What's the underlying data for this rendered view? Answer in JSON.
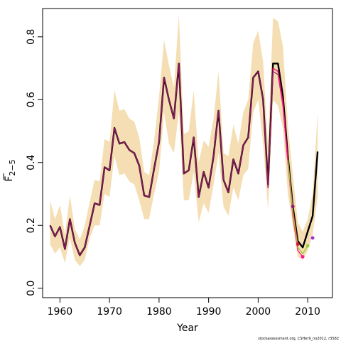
{
  "chart_data": {
    "type": "line",
    "xlabel": "Year",
    "ylabel": "F",
    "ylabel_sub": "2−5",
    "credit": "stockassessment.org, CSHer9_no2012, r3582",
    "xlim": [
      1956.5,
      2015
    ],
    "ylim": [
      -0.03,
      0.89
    ],
    "x_ticks": [
      1960,
      1970,
      1980,
      1990,
      2000,
      2010
    ],
    "x_tick_labels": [
      "1960",
      "1970",
      "1980",
      "1990",
      "2000",
      "2010"
    ],
    "y_ticks": [
      0.0,
      0.2,
      0.4,
      0.6,
      0.8
    ],
    "y_tick_labels": [
      "0.0",
      "0.2",
      "0.4",
      "0.6",
      "0.8"
    ],
    "grid": false,
    "legend": "none",
    "colors": {
      "band": "#f5deb3",
      "black_series": "#000000",
      "red_series": "#dc143c",
      "purple_series": "#8b1a6b",
      "pink_series": "#ff1493",
      "green_series": "#9acd32",
      "violet_series": "#9932cc"
    },
    "band": {
      "x": [
        1958,
        1959,
        1960,
        1961,
        1962,
        1963,
        1964,
        1965,
        1966,
        1967,
        1968,
        1969,
        1970,
        1971,
        1972,
        1973,
        1974,
        1975,
        1976,
        1977,
        1978,
        1979,
        1980,
        1981,
        1982,
        1983,
        1984,
        1985,
        1986,
        1987,
        1988,
        1989,
        1990,
        1991,
        1992,
        1993,
        1994,
        1995,
        1996,
        1997,
        1998,
        1999,
        2000,
        2001,
        2002,
        2003,
        2004,
        2005,
        2006,
        2007,
        2008,
        2009,
        2010,
        2011,
        2012
      ],
      "upper": [
        0.28,
        0.22,
        0.265,
        0.17,
        0.295,
        0.19,
        0.155,
        0.2,
        0.275,
        0.345,
        0.34,
        0.475,
        0.465,
        0.63,
        0.565,
        0.57,
        0.54,
        0.53,
        0.48,
        0.37,
        0.36,
        0.47,
        0.61,
        0.79,
        0.71,
        0.64,
        0.87,
        0.49,
        0.5,
        0.63,
        0.4,
        0.47,
        0.45,
        0.54,
        0.69,
        0.43,
        0.42,
        0.52,
        0.46,
        0.56,
        0.6,
        0.78,
        0.82,
        0.72,
        0.45,
        0.86,
        0.85,
        0.77,
        0.52,
        0.36,
        0.21,
        0.18,
        0.22,
        0.3,
        0.56
      ],
      "lower": [
        0.14,
        0.11,
        0.13,
        0.08,
        0.16,
        0.09,
        0.07,
        0.09,
        0.16,
        0.2,
        0.2,
        0.3,
        0.29,
        0.42,
        0.36,
        0.365,
        0.34,
        0.33,
        0.28,
        0.22,
        0.22,
        0.3,
        0.37,
        0.56,
        0.46,
        0.43,
        0.56,
        0.28,
        0.28,
        0.37,
        0.21,
        0.27,
        0.24,
        0.33,
        0.43,
        0.26,
        0.23,
        0.32,
        0.28,
        0.36,
        0.38,
        0.56,
        0.6,
        0.46,
        0.25,
        0.6,
        0.58,
        0.51,
        0.3,
        0.2,
        0.1,
        0.09,
        0.12,
        0.17,
        0.29
      ]
    },
    "series": [
      {
        "color": "#000000",
        "width": 2.4,
        "x": [
          1958,
          1959,
          1960,
          1961,
          1962,
          1963,
          1964,
          1965,
          1966,
          1967,
          1968,
          1969,
          1970,
          1971,
          1972,
          1973,
          1974,
          1975,
          1976,
          1977,
          1978,
          1979,
          1980,
          1981,
          1982,
          1983,
          1984,
          1985,
          1986,
          1987,
          1988,
          1989,
          1990,
          1991,
          1992,
          1993,
          1994,
          1995,
          1996,
          1997,
          1998,
          1999,
          2000,
          2001,
          2002,
          2003,
          2004,
          2005,
          2006,
          2007,
          2008,
          2009,
          2010,
          2011,
          2012
        ],
        "values": [
          0.2,
          0.165,
          0.195,
          0.125,
          0.22,
          0.145,
          0.105,
          0.13,
          0.2,
          0.27,
          0.265,
          0.385,
          0.375,
          0.51,
          0.46,
          0.465,
          0.44,
          0.43,
          0.39,
          0.295,
          0.29,
          0.38,
          0.465,
          0.67,
          0.6,
          0.54,
          0.715,
          0.365,
          0.375,
          0.48,
          0.29,
          0.37,
          0.32,
          0.42,
          0.565,
          0.345,
          0.305,
          0.41,
          0.365,
          0.455,
          0.48,
          0.67,
          0.69,
          0.6,
          0.33,
          0.715,
          0.715,
          0.61,
          0.42,
          0.26,
          0.15,
          0.13,
          0.18,
          0.23,
          0.435
        ]
      },
      {
        "color": "#dc143c",
        "width": 1.4,
        "x": [
          1958,
          1959,
          1960,
          1961,
          1962,
          1963,
          1964,
          1965,
          1966,
          1967,
          1968,
          1969,
          1970,
          1971,
          1972,
          1973,
          1974,
          1975,
          1976,
          1977,
          1978,
          1979,
          1980,
          1981,
          1982,
          1983,
          1984,
          1985,
          1986,
          1987,
          1988,
          1989,
          1990,
          1991,
          1992,
          1993,
          1994,
          1995,
          1996,
          1997,
          1998,
          1999,
          2000,
          2001,
          2002,
          2003,
          2004,
          2005,
          2006,
          2007,
          2008
        ],
        "values": [
          0.2,
          0.165,
          0.195,
          0.125,
          0.22,
          0.145,
          0.105,
          0.13,
          0.2,
          0.27,
          0.265,
          0.385,
          0.375,
          0.51,
          0.46,
          0.465,
          0.44,
          0.43,
          0.39,
          0.295,
          0.29,
          0.38,
          0.465,
          0.67,
          0.6,
          0.54,
          0.715,
          0.365,
          0.375,
          0.48,
          0.29,
          0.37,
          0.32,
          0.42,
          0.565,
          0.345,
          0.305,
          0.41,
          0.365,
          0.455,
          0.48,
          0.67,
          0.69,
          0.6,
          0.32,
          0.7,
          0.69,
          0.59,
          0.41,
          0.25,
          0.14
        ]
      },
      {
        "color": "#8b1a6b",
        "width": 1.2,
        "x": [
          1958,
          1959,
          1960,
          1961,
          1962,
          1963,
          1964,
          1965,
          1966,
          1967,
          1968,
          1969,
          1970,
          1971,
          1972,
          1973,
          1974,
          1975,
          1976,
          1977,
          1978,
          1979,
          1980,
          1981,
          1982,
          1983,
          1984,
          1985,
          1986,
          1987,
          1988,
          1989,
          1990,
          1991,
          1992,
          1993,
          1994,
          1995,
          1996,
          1997,
          1998,
          1999,
          2000,
          2001,
          2002,
          2003,
          2004,
          2005,
          2006,
          2007
        ],
        "values": [
          0.2,
          0.165,
          0.195,
          0.125,
          0.22,
          0.145,
          0.105,
          0.13,
          0.2,
          0.27,
          0.265,
          0.385,
          0.375,
          0.51,
          0.46,
          0.465,
          0.44,
          0.43,
          0.39,
          0.295,
          0.29,
          0.38,
          0.465,
          0.67,
          0.6,
          0.54,
          0.715,
          0.365,
          0.375,
          0.48,
          0.29,
          0.37,
          0.32,
          0.42,
          0.565,
          0.345,
          0.305,
          0.41,
          0.365,
          0.455,
          0.48,
          0.67,
          0.69,
          0.6,
          0.32,
          0.69,
          0.68,
          0.58,
          0.4,
          0.26
        ]
      },
      {
        "color": "#ff1493",
        "width": 1.3,
        "x": [
          2003,
          2004,
          2005,
          2006,
          2007,
          2008,
          2009
        ],
        "values": [
          0.7,
          0.69,
          0.58,
          0.4,
          0.23,
          0.12,
          0.1
        ]
      },
      {
        "color": "#9acd32",
        "width": 1.3,
        "x": [
          2006,
          2007,
          2008,
          2009,
          2010
        ],
        "values": [
          0.41,
          0.24,
          0.13,
          0.11,
          0.135
        ]
      }
    ],
    "points": [
      {
        "color": "#8b1a6b",
        "x": 2007,
        "y": 0.26
      },
      {
        "color": "#dc143c",
        "x": 2008,
        "y": 0.14
      },
      {
        "color": "#ff1493",
        "x": 2009,
        "y": 0.1
      },
      {
        "color": "#9acd32",
        "x": 2010,
        "y": 0.135
      },
      {
        "color": "#9932cc",
        "x": 2011,
        "y": 0.16
      }
    ]
  }
}
